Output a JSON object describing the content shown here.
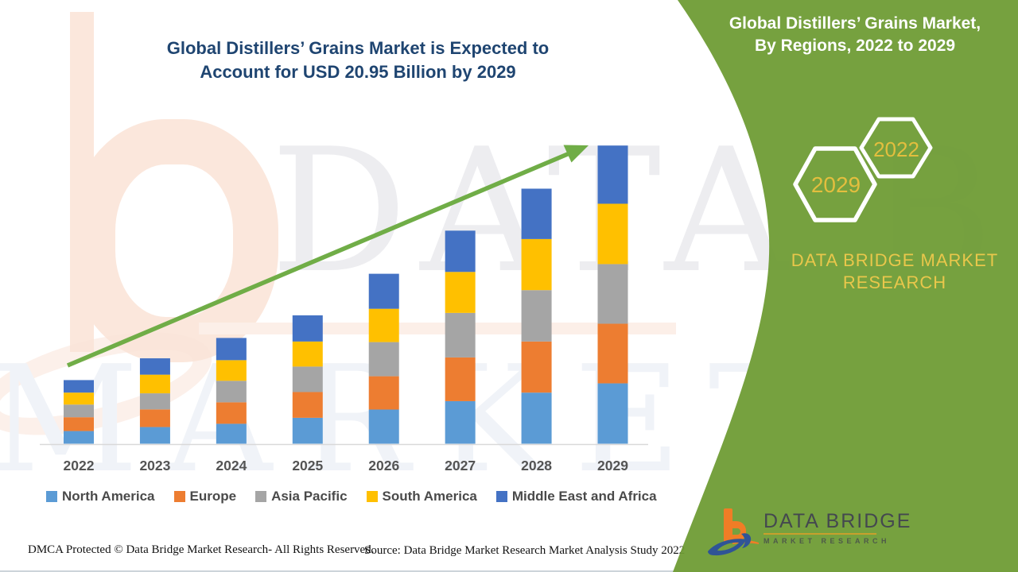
{
  "left_panel": {
    "title_line1": "Global Distillers’ Grains Market is Expected to",
    "title_line2": "Account for USD 20.95 Billion by 2029"
  },
  "watermark": {
    "line1": "DATA BRIDGE",
    "line2": "MARKET RESEARCH"
  },
  "green_panel": {
    "title_line1": "Global Distillers’ Grains Market,",
    "title_line2": "By Regions, 2022 to 2029",
    "hex_back_label": "2029",
    "hex_front_label": "2022",
    "brand_line1": "DATA BRIDGE MARKET",
    "brand_line2": "RESEARCH",
    "logo_title": "DATA BRIDGE",
    "logo_subtitle": "MARKET RESEARCH",
    "colors": {
      "background": "#6F9C35",
      "gold": "#E3BE3E",
      "title_text": "#FFFFFF"
    }
  },
  "footer": {
    "dmca": "DMCA Protected © Data Bridge Market Research- All Rights Reserved.",
    "source": "Source: Data Bridge Market Research Market Analysis Study 2022"
  },
  "chart_data": {
    "type": "bar",
    "stacked": true,
    "title": "Global Distillers’ Grains Market is Expected to Account for USD 20.95 Billion by 2029",
    "unit": "USD Billion",
    "categories": [
      "2022",
      "2023",
      "2024",
      "2025",
      "2026",
      "2027",
      "2028",
      "2029"
    ],
    "series": [
      {
        "name": "North America",
        "color": "#5B9BD5",
        "values": [
          0.89,
          1.17,
          1.4,
          1.82,
          2.4,
          2.99,
          3.59,
          4.24
        ]
      },
      {
        "name": "Europe",
        "color": "#ED7D31",
        "values": [
          0.97,
          1.24,
          1.51,
          1.81,
          2.34,
          3.07,
          3.59,
          4.19
        ]
      },
      {
        "name": "Asia Pacific",
        "color": "#A5A5A5",
        "values": [
          0.89,
          1.13,
          1.51,
          1.79,
          2.4,
          3.13,
          3.61,
          4.19
        ]
      },
      {
        "name": "South America",
        "color": "#FFC000",
        "values": [
          0.84,
          1.31,
          1.45,
          1.76,
          2.34,
          2.88,
          3.59,
          4.24
        ]
      },
      {
        "name": "Middle East and Africa",
        "color": "#4472C4",
        "values": [
          0.88,
          1.15,
          1.56,
          1.84,
          2.46,
          2.9,
          3.54,
          4.09
        ]
      }
    ],
    "estimated_totals": [
      4.47,
      6.0,
      7.43,
      9.02,
      11.94,
      14.97,
      17.92,
      20.95
    ],
    "ylim": [
      0,
      21
    ],
    "grid": false,
    "legend_position": "bottom",
    "trend_arrow_color": "#70AD47",
    "axis_line_color": "#D9D9D9"
  }
}
